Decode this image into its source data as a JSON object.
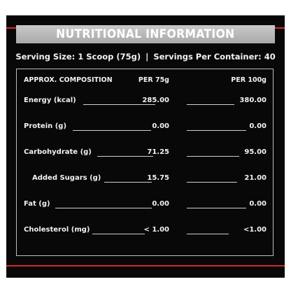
{
  "panel": {
    "title": "NUTRITIONAL INFORMATION",
    "serving_size": "Serving Size: 1 Scoop (75g)",
    "separator": "|",
    "servings_per_container": "Servings Per Container: 40",
    "colors": {
      "background": "#080808",
      "accent": "#d4262c",
      "title_bar": "#bdbdbd"
    }
  },
  "table": {
    "headers": {
      "composition": "APPROX. COMPOSITION",
      "per_75g": "PER 75g",
      "per_100g": "PER 100g"
    },
    "rows": [
      {
        "label": "Energy (kcal)",
        "per_75g": "285.00",
        "per_100g": "380.00"
      },
      {
        "label": "Protein (g)",
        "per_75g": "0.00",
        "per_100g": "0.00"
      },
      {
        "label": "Carbohydrate (g)",
        "per_75g": "71.25",
        "per_100g": "95.00"
      },
      {
        "label": "Added Sugars (g)",
        "per_75g": "15.75",
        "per_100g": "21.00"
      },
      {
        "label": "Fat (g)",
        "per_75g": "0.00",
        "per_100g": "0.00"
      },
      {
        "label": "Cholesterol (mg)",
        "per_75g": "< 1.00",
        "per_100g": "<1.00"
      }
    ]
  }
}
